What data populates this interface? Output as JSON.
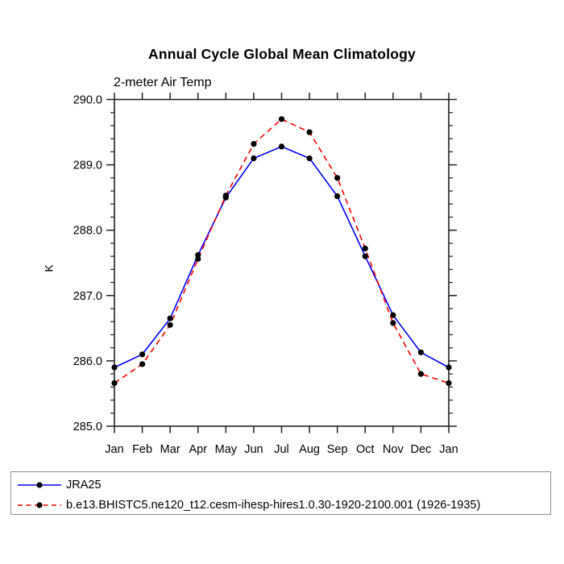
{
  "chart": {
    "title": "Annual Cycle Global Mean Climatology",
    "subtitle": "2-meter Air Temp",
    "y_axis_label": "K"
  },
  "chart_data": {
    "type": "line",
    "title": "Annual Cycle Global Mean Climatology",
    "subtitle": "2-meter Air Temp",
    "xlabel": "",
    "ylabel": "K",
    "x_categories": [
      "Jan",
      "Feb",
      "Mar",
      "Apr",
      "May",
      "Jun",
      "Jul",
      "Aug",
      "Sep",
      "Oct",
      "Nov",
      "Dec",
      "Jan"
    ],
    "ylim": [
      285.0,
      290.0
    ],
    "y_major_ticks": [
      "285.0",
      "286.0",
      "287.0",
      "288.0",
      "289.0",
      "290.0"
    ],
    "y_minor_step": 0.2,
    "grid": false,
    "legend_position": "bottom-left-box",
    "marker": "filled-circle",
    "marker_color": "#000000",
    "axis_color": "#222222",
    "series": [
      {
        "name": "JRA25",
        "color": "#0000ff",
        "line_style": "solid",
        "values": [
          285.9,
          286.1,
          286.65,
          287.62,
          288.5,
          289.1,
          289.28,
          289.1,
          288.52,
          287.6,
          286.7,
          286.13,
          285.9
        ]
      },
      {
        "name": "b.e13.BHISTC5.ne120_t12.cesm-ihesp-hires1.0.30-1920-2100.001 (1926-1935)",
        "color": "#ff0000",
        "line_style": "dashed",
        "values": [
          285.66,
          285.95,
          286.55,
          287.56,
          288.53,
          289.32,
          289.7,
          289.5,
          288.8,
          287.72,
          286.58,
          285.8,
          285.66
        ]
      }
    ]
  }
}
